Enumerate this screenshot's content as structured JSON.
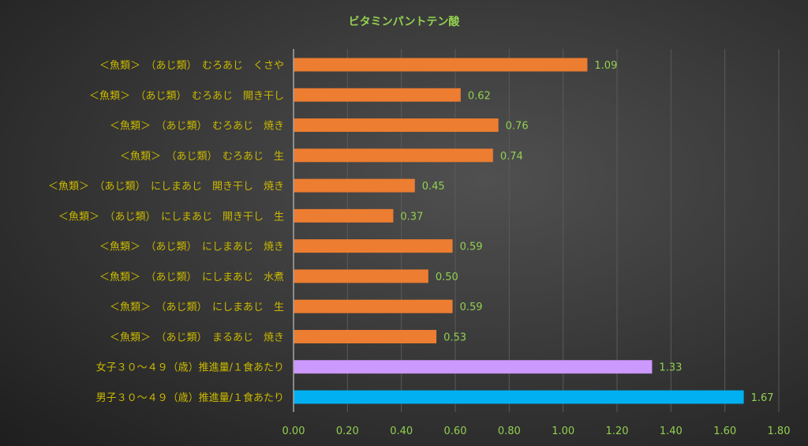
{
  "chart_data": {
    "type": "bar",
    "orientation": "horizontal",
    "title": "ビタミンパントテン酸",
    "xlabel": "",
    "ylabel": "",
    "xlim": [
      0,
      1.8
    ],
    "x_ticks": [
      "0.00",
      "0.20",
      "0.40",
      "0.60",
      "0.80",
      "1.00",
      "1.20",
      "1.40",
      "1.60",
      "1.80"
    ],
    "grid": true,
    "legend": "none",
    "categories": [
      "＜魚類＞　（あじ類）　むろあじ　くさや",
      "＜魚類＞　（あじ類）　むろあじ　開き干し",
      "＜魚類＞　（あじ類）　むろあじ　焼き",
      "＜魚類＞　（あじ類）　むろあじ　生",
      "＜魚類＞　（あじ類）　にしまあじ　開き干し　焼き",
      "＜魚類＞　（あじ類）　にしまあじ　開き干し　生",
      "＜魚類＞　（あじ類）　にしまあじ　焼き",
      "＜魚類＞　（あじ類）　にしまあじ　水煮",
      "＜魚類＞　（あじ類）　にしまあじ　生",
      "＜魚類＞　（あじ類）　まるあじ　焼き",
      "女子３０～４９（歳）推進量/１食あたり",
      "男子３０～４９（歳）推進量/１食あたり"
    ],
    "values": [
      1.09,
      0.62,
      0.76,
      0.74,
      0.45,
      0.37,
      0.59,
      0.5,
      0.59,
      0.53,
      1.33,
      1.67
    ],
    "data_labels": [
      "1.09",
      "0.62",
      "0.76",
      "0.74",
      "0.45",
      "0.37",
      "0.59",
      "0.50",
      "0.59",
      "0.53",
      "1.33",
      "1.67"
    ],
    "colors": [
      "#ed7d31",
      "#ed7d31",
      "#ed7d31",
      "#ed7d31",
      "#ed7d31",
      "#ed7d31",
      "#ed7d31",
      "#ed7d31",
      "#ed7d31",
      "#ed7d31",
      "#cc99ff",
      "#00b0f0"
    ]
  }
}
